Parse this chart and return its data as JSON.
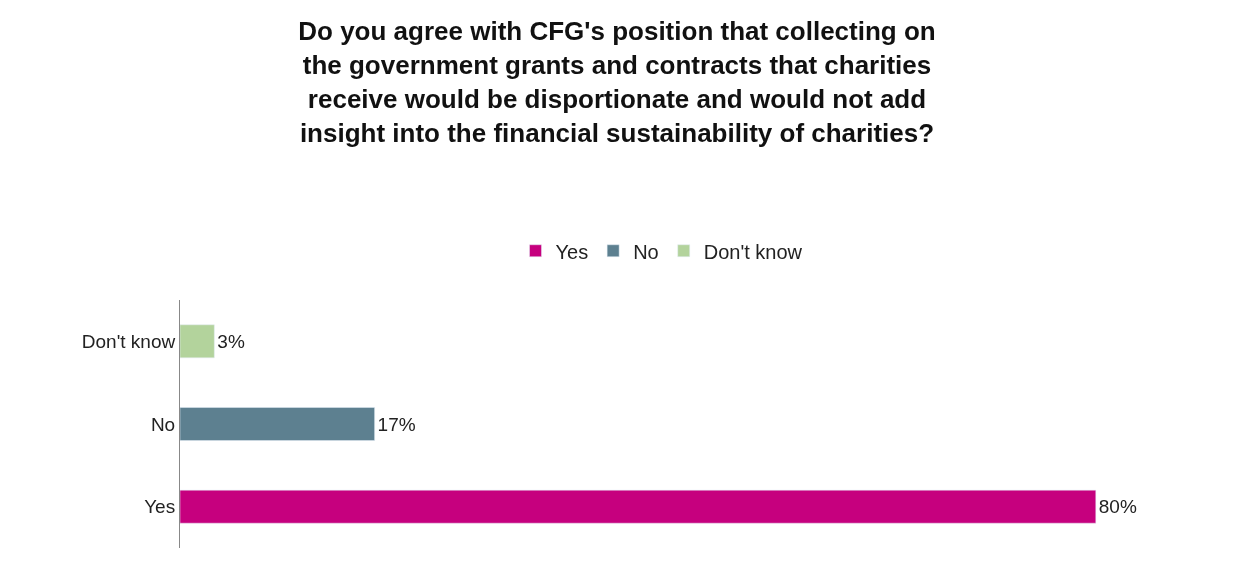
{
  "chart_data": {
    "type": "bar",
    "orientation": "horizontal",
    "title": "Do you agree with CFG's position that collecting on\nthe government grants and contracts that charities\nreceive would be disportionate and would not add\ninsight into the financial sustainability of charities?",
    "categories": [
      "Don't know",
      "No",
      "Yes"
    ],
    "series": [
      {
        "name": "Yes",
        "color": "#c6007e",
        "values": [
          null,
          null,
          80
        ],
        "value_labels": [
          null,
          null,
          "80%"
        ]
      },
      {
        "name": "No",
        "color": "#5d8090",
        "values": [
          null,
          17,
          null
        ],
        "value_labels": [
          null,
          "17%",
          null
        ]
      },
      {
        "name": "Don't know",
        "color": "#b3d39c",
        "values": [
          3,
          null,
          null
        ],
        "value_labels": [
          "3%",
          null,
          null
        ]
      }
    ],
    "legend": "top"
  }
}
